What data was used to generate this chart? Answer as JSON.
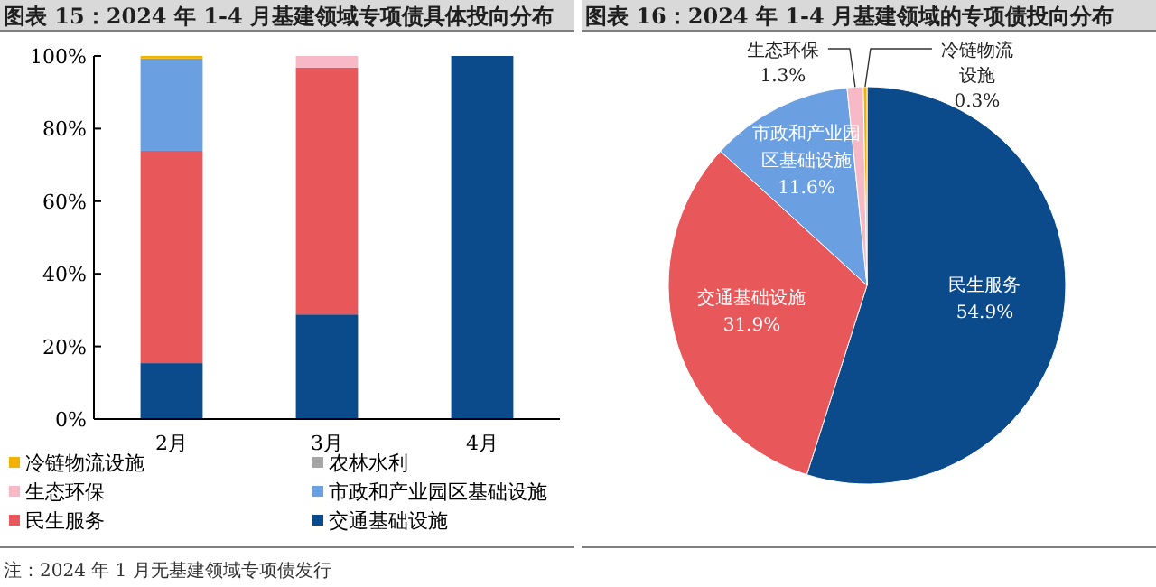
{
  "chart_data": [
    {
      "type": "bar",
      "title": "图表 15：2024 年 1-4 月基建领域专项债具体投向分布",
      "stacked": true,
      "categories": [
        "2月",
        "3月",
        "4月"
      ],
      "ylim": [
        0,
        100
      ],
      "yticks": [
        {
          "value": 0,
          "label": "0%"
        },
        {
          "value": 20,
          "label": "20%"
        },
        {
          "value": 40,
          "label": "40%"
        },
        {
          "value": 60,
          "label": "60%"
        },
        {
          "value": 80,
          "label": "80%"
        },
        {
          "value": 100,
          "label": "100%"
        }
      ],
      "legend": "bottom",
      "annotations": [
        "注：2024 年 1 月无基建领域专项债发行"
      ],
      "series": [
        {
          "name": "交通基础设施",
          "color": "#0b4a8b",
          "values": [
            15.4,
            28.8,
            100
          ]
        },
        {
          "name": "民生服务",
          "color": "#e8585a",
          "values": [
            58.5,
            68,
            0
          ]
        },
        {
          "name": "市政和产业园区基础设施",
          "color": "#6aa0e2",
          "values": [
            25.4,
            0,
            0
          ]
        },
        {
          "name": "生态环保",
          "color": "#f8b9c6",
          "values": [
            0,
            3.2,
            0
          ]
        },
        {
          "name": "农林水利",
          "color": "#a6a6a6",
          "values": [
            0,
            0,
            0
          ]
        },
        {
          "name": "冷链物流设施",
          "color": "#f2b200",
          "values": [
            0.7,
            0,
            0
          ]
        }
      ]
    },
    {
      "type": "pie",
      "title": "图表 16：2024 年 1-4 月基建领域的专项债投向分布",
      "categories": [
        "民生服务",
        "交通基础设施",
        "市政和产业园区基础设施",
        "生态环保",
        "冷链物流设施"
      ],
      "values": [
        54.9,
        31.9,
        11.6,
        1.3,
        0.3
      ],
      "value_labels": [
        "54.9%",
        "31.9%",
        "11.6%",
        "1.3%",
        "0.3%"
      ],
      "colors": [
        "#0b4a8b",
        "#e8585a",
        "#6aa0e2",
        "#f8b9c6",
        "#f2b200"
      ]
    }
  ]
}
